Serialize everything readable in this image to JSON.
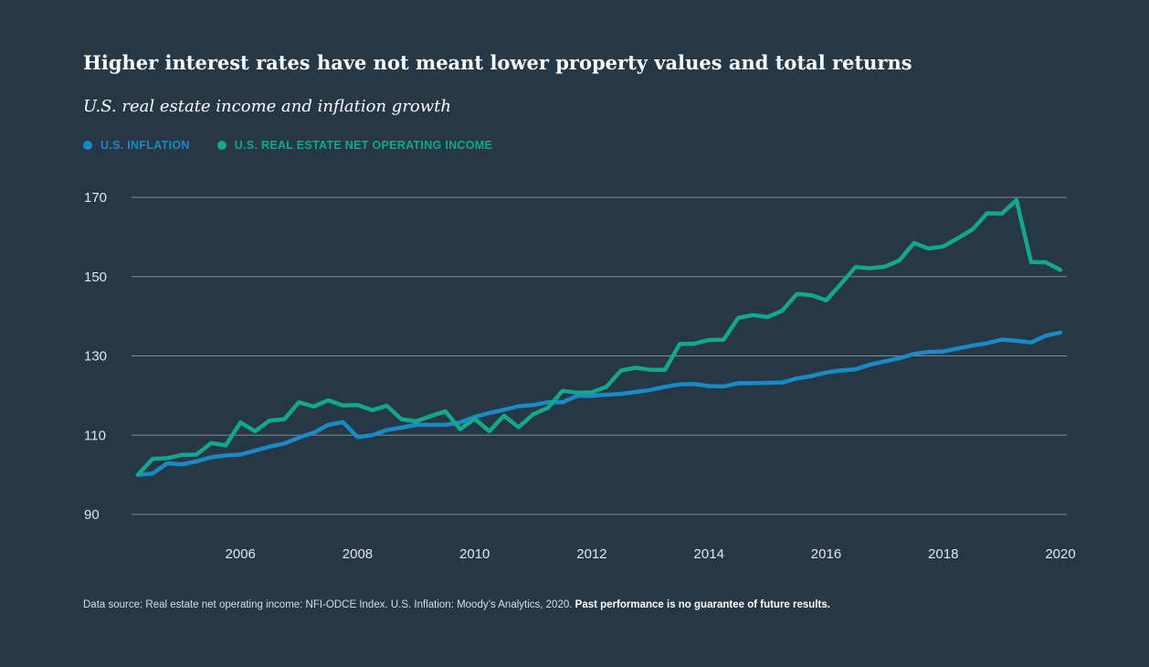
{
  "chart_data": {
    "type": "line",
    "title": "Higher interest rates have not meant lower property values and total returns",
    "subtitle": "U.S. real estate income and inflation growth",
    "xlabel": "",
    "ylabel": "",
    "xlim": [
      2004.3,
      2020
    ],
    "ylim": [
      90,
      170
    ],
    "yticks": [
      90,
      110,
      130,
      150,
      170
    ],
    "ytick_labels": [
      "90",
      "110",
      "130",
      "150",
      "170"
    ],
    "xticks": [
      2006,
      2008,
      2010,
      2012,
      2014,
      2016,
      2018,
      2020
    ],
    "xtick_labels": [
      "2006",
      "2008",
      "2010",
      "2012",
      "2014",
      "2016",
      "2018",
      "2020"
    ],
    "grid": true,
    "legend_position": "top-left",
    "x": [
      2004.25,
      2004.5,
      2004.75,
      2005.0,
      2005.25,
      2005.5,
      2005.75,
      2006.0,
      2006.25,
      2006.5,
      2006.75,
      2007.0,
      2007.25,
      2007.5,
      2007.75,
      2008.0,
      2008.25,
      2008.5,
      2008.75,
      2009.0,
      2009.25,
      2009.5,
      2009.75,
      2010.0,
      2010.25,
      2010.5,
      2010.75,
      2011.0,
      2011.25,
      2011.5,
      2011.75,
      2012.0,
      2012.25,
      2012.5,
      2012.75,
      2013.0,
      2013.25,
      2013.5,
      2013.75,
      2014.0,
      2014.25,
      2014.5,
      2014.75,
      2015.0,
      2015.25,
      2015.5,
      2015.75,
      2016.0,
      2016.25,
      2016.5,
      2016.75,
      2017.0,
      2017.25,
      2017.5,
      2017.75,
      2018.0,
      2018.25,
      2018.5,
      2018.75,
      2019.0,
      2019.25,
      2019.5,
      2019.75,
      2020.0
    ],
    "series": [
      {
        "name": "U.S. INFLATION",
        "color": "#1a8ac4",
        "values": [
          100.0,
          100.3,
          102.9,
          102.6,
          103.4,
          104.4,
          104.9,
          105.1,
          106.1,
          107.1,
          107.9,
          109.4,
          110.6,
          112.6,
          113.3,
          109.5,
          110.0,
          111.3,
          111.9,
          112.6,
          112.6,
          112.6,
          113.2,
          114.6,
          115.6,
          116.4,
          117.3,
          117.6,
          118.3,
          118.3,
          119.9,
          119.9,
          120.2,
          120.4,
          120.9,
          121.4,
          122.2,
          122.8,
          122.9,
          122.4,
          122.3,
          123.1,
          123.1,
          123.2,
          123.3,
          124.3,
          124.9,
          125.8,
          126.3,
          126.6,
          127.8,
          128.6,
          129.4,
          130.5,
          131.0,
          131.1,
          131.9,
          132.6,
          133.2,
          134.1,
          133.8,
          133.4,
          135.1,
          135.9
        ]
      },
      {
        "name": "U.S. REAL ESTATE NET OPERATING INCOME",
        "color": "#12a88f",
        "values": [
          100.0,
          104.0,
          104.2,
          105.0,
          105.1,
          108.0,
          107.4,
          113.2,
          111.0,
          113.7,
          114.0,
          118.3,
          117.2,
          118.8,
          117.5,
          117.6,
          116.3,
          117.4,
          114.0,
          113.5,
          114.8,
          116.0,
          111.5,
          114.1,
          111.0,
          114.9,
          112.0,
          115.3,
          116.9,
          121.2,
          120.7,
          120.8,
          122.2,
          126.3,
          127.0,
          126.5,
          126.5,
          133.0,
          133.1,
          134.0,
          134.1,
          139.6,
          140.3,
          139.8,
          141.4,
          145.6,
          145.3,
          144.0,
          148.1,
          152.4,
          152.1,
          152.5,
          154.1,
          158.5,
          157.1,
          157.6,
          159.7,
          161.9,
          166.0,
          165.9,
          169.3,
          153.7,
          153.6,
          151.7
        ]
      }
    ]
  },
  "footnote": {
    "source_text": "Data source: Real estate net operating income: NFI-ODCE Index. U.S. Inflation: Moody’s Analytics, 2020.",
    "disclaimer": "Past performance is no guarantee of future results."
  }
}
